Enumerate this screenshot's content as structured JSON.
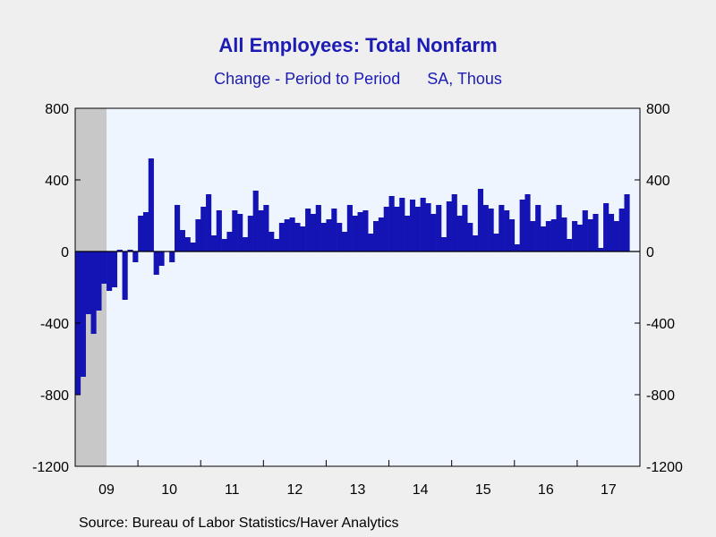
{
  "chart_data": {
    "type": "bar",
    "title": "All Employees: Total Nonfarm",
    "subtitle_left": "Change - Period to Period",
    "subtitle_right": "SA, Thous",
    "source": "Source:  Bureau of Labor Statistics/Haver Analytics",
    "ylim": [
      -1200,
      800
    ],
    "yticks": [
      800,
      400,
      0,
      -400,
      -800,
      -1200
    ],
    "x_tick_labels": [
      "09",
      "10",
      "11",
      "12",
      "13",
      "14",
      "15",
      "16",
      "17"
    ],
    "recession_shading": {
      "start": "2009-01",
      "end": "2009-06",
      "color": "#c8c8c8"
    },
    "plot_background": "#eef5ff",
    "bar_color": "#1414b4",
    "grid": false,
    "start": "2009-01",
    "end": "2017-12",
    "values": [
      -800,
      -700,
      -350,
      -460,
      -330,
      -180,
      -220,
      -200,
      10,
      -270,
      10,
      -60,
      200,
      220,
      520,
      -130,
      -80,
      0,
      -60,
      260,
      120,
      80,
      50,
      180,
      250,
      320,
      90,
      230,
      70,
      110,
      230,
      210,
      80,
      200,
      340,
      230,
      260,
      110,
      70,
      160,
      180,
      190,
      160,
      140,
      240,
      210,
      260,
      160,
      180,
      240,
      160,
      110,
      260,
      200,
      220,
      230,
      100,
      170,
      190,
      250,
      310,
      250,
      300,
      200,
      290,
      250,
      300,
      270,
      210,
      260,
      80,
      280,
      320,
      200,
      260,
      160,
      90,
      350,
      260,
      240,
      100,
      260,
      230,
      180,
      40,
      290,
      320,
      170,
      260,
      140,
      170,
      180,
      260,
      190,
      70,
      170,
      150,
      230,
      180,
      210,
      20,
      270,
      210,
      170,
      240,
      320
    ]
  }
}
